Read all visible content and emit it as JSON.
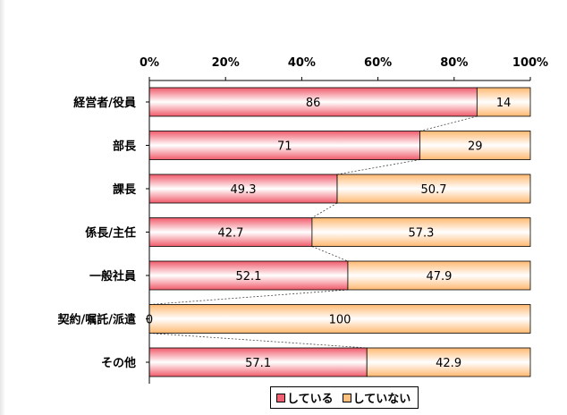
{
  "chart_data": {
    "type": "bar",
    "orientation": "horizontal",
    "stacked": true,
    "percent_stacked": true,
    "title": "",
    "xlabel": "",
    "ylabel": "",
    "xlim": [
      0,
      100
    ],
    "x_ticks": [
      "0%",
      "20%",
      "40%",
      "60%",
      "80%",
      "100%"
    ],
    "categories": [
      "経営者/役員",
      "部長",
      "課長",
      "係長/主任",
      "一般社員",
      "契約/嘱託/派遣",
      "その他"
    ],
    "series": [
      {
        "name": "している",
        "color": "#f06070",
        "values": [
          86,
          71,
          49.3,
          42.7,
          52.1,
          0,
          57.1
        ],
        "labels": [
          "86",
          "71",
          "49.3",
          "42.7",
          "52.1",
          "0",
          "57.1"
        ]
      },
      {
        "name": "していない",
        "color": "#ffc080",
        "values": [
          14,
          29,
          50.7,
          57.3,
          47.9,
          100,
          42.9
        ],
        "labels": [
          "14",
          "29",
          "50.7",
          "57.3",
          "47.9",
          "100",
          "42.9"
        ]
      }
    ],
    "series_lines": true,
    "grid": false,
    "legend_position": "bottom"
  }
}
